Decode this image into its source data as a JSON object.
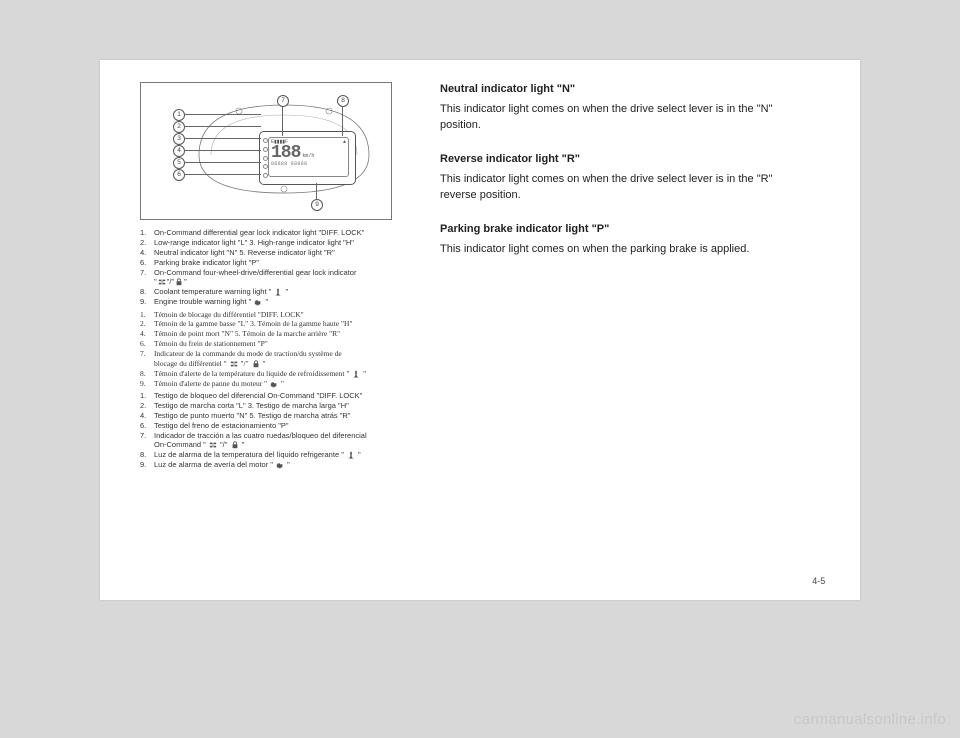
{
  "pageNumber": "4-5",
  "watermark": "carmanualsonline.info",
  "diagram": {
    "callouts": [
      "1",
      "2",
      "3",
      "4",
      "5",
      "6",
      "7",
      "8",
      "9"
    ],
    "lcd_big": "188",
    "lcd_unit": "km/h",
    "lcd_row": "88888 88888"
  },
  "captions_en": [
    {
      "n": "1.",
      "t": "On-Command differential gear lock indicator light \"DIFF. LOCK\""
    },
    {
      "n": "2.",
      "t": "Low-range indicator light \"L\"    3.   High-range indicator light \"H\""
    },
    {
      "n": "4.",
      "t": "Neutral indicator light \"N\"       5.   Reverse indicator light \"R\""
    },
    {
      "n": "6.",
      "t": "Parking brake indicator light \"P\""
    },
    {
      "n": "7.",
      "t": "On-Command four-wheel-drive/differential gear lock indicator"
    },
    {
      "n": "",
      "t": "\"      \"/\"      \""
    },
    {
      "n": "8.",
      "t": "Coolant temperature warning light \"      \""
    },
    {
      "n": "9.",
      "t": "Engine trouble warning light \"      \""
    }
  ],
  "captions_fr": [
    {
      "n": "1.",
      "t": "Témoin de blocage du différentiel \"DIFF. LOCK\""
    },
    {
      "n": "2.",
      "t": "Témoin de la gamme basse \"L\"   3.   Témoin de la gamme haute \"H\""
    },
    {
      "n": "4.",
      "t": "Témoin de point mort \"N\"       5.   Témoin de la marche arrière \"R\""
    },
    {
      "n": "6.",
      "t": "Témoin du frein de stationnement \"P\""
    },
    {
      "n": "7.",
      "t": "Indicateur de la commande du mode de traction/du système de"
    },
    {
      "n": "",
      "t": "blocage du différentiel \"      \"/\"      \""
    },
    {
      "n": "8.",
      "t": "Témoin d'alerte de la température du liquide de refroidissement \"      \""
    },
    {
      "n": "9.",
      "t": "Témoin d'alerte de panne du moteur \"      \""
    }
  ],
  "captions_es": [
    {
      "n": "1.",
      "t": "Testigo de bloqueo del diferencial On-Command \"DIFF. LOCK\""
    },
    {
      "n": "2.",
      "t": "Testigo de marcha corta \"L\"    3.   Testigo de marcha larga \"H\""
    },
    {
      "n": "4.",
      "t": "Testigo de punto muerto \"N\"    5.   Testigo de marcha atrás \"R\""
    },
    {
      "n": "6.",
      "t": "Testigo del freno de estacionamiento \"P\""
    },
    {
      "n": "7.",
      "t": "Indicador de tracción a las cuatro ruedas/bloqueo del diferencial"
    },
    {
      "n": "",
      "t": "On-Command \"      \"/\"      \""
    },
    {
      "n": "8.",
      "t": "Luz de alarma de la temperatura del líquido refrigerante \"      \""
    },
    {
      "n": "9.",
      "t": "Luz de alarma de avería del motor \"      \""
    }
  ],
  "right": {
    "s1_title": "Neutral indicator light \"N\"",
    "s1_body": "This indicator light comes on when the drive select lever is in the \"N\" position.",
    "s2_title": "Reverse indicator light \"R\"",
    "s2_body": "This indicator light comes on when the drive select lever is in the \"R\" reverse position.",
    "s3_title": "Parking brake indicator light \"P\"",
    "s3_body": "This indicator light comes on when the parking brake is applied."
  }
}
